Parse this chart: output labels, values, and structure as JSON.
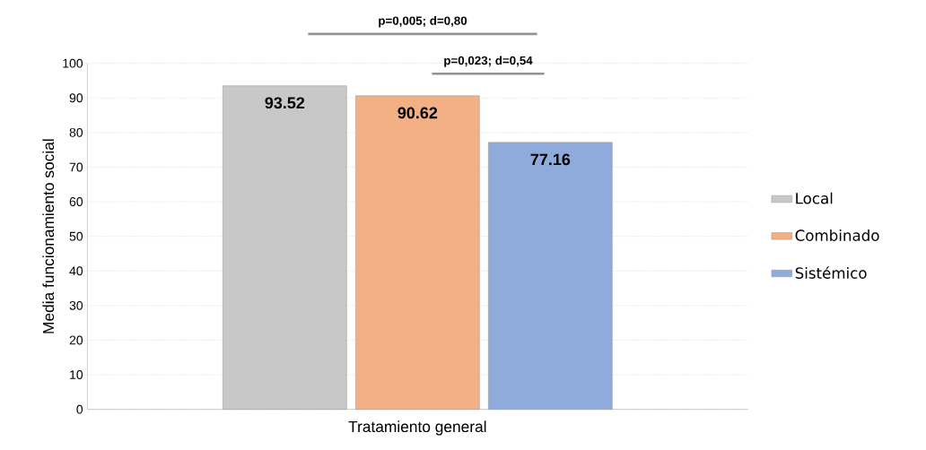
{
  "chart_data": {
    "type": "bar",
    "ylabel": "Media funcionamiento social",
    "categories": [
      "Tratamiento general"
    ],
    "series": [
      {
        "name": "Local",
        "color": "#c8c8c8",
        "values": [
          93.52
        ]
      },
      {
        "name": "Combinado",
        "color": "#f3b085",
        "values": [
          90.62
        ]
      },
      {
        "name": "Sistémico",
        "color": "#8eabdc",
        "values": [
          77.16
        ]
      }
    ],
    "ylim": [
      0,
      100
    ],
    "yticks": [
      0,
      10,
      20,
      30,
      40,
      50,
      60,
      70,
      80,
      90,
      100
    ],
    "grid": "y",
    "legend": "right",
    "data_labels": true,
    "annotations": [
      "p=0,005; d=0,80",
      "p=0,023; d=0,54"
    ]
  }
}
